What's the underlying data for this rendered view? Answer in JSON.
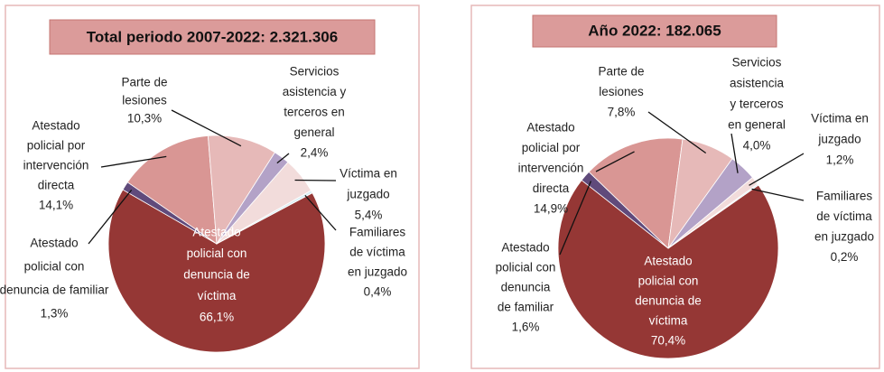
{
  "chart_data": [
    {
      "type": "pie",
      "title": "Total periodo 2007-2022: 2.321.306",
      "label_lines": [
        [
          "Atestado",
          "policial con",
          "denuncia de",
          "víctima"
        ],
        [
          "Atestado",
          "policial con",
          "denuncia de familiar"
        ],
        [
          "Atestado",
          "policial por",
          "intervención",
          "directa"
        ],
        [
          "Parte de",
          "lesiones"
        ],
        [
          "Servicios",
          "asistencia y",
          "terceros en",
          "general"
        ],
        [
          "Víctima en",
          "juzgado"
        ],
        [
          "Familiares",
          "de víctima",
          "en juzgado"
        ]
      ],
      "values": [
        66.1,
        1.3,
        14.1,
        10.3,
        2.4,
        5.4,
        0.4
      ],
      "value_labels": [
        "66,1%",
        "1,3%",
        "14,1%",
        "10,3%",
        "2,4%",
        "5,4%",
        "0,4%"
      ],
      "colors": [
        "#953735",
        "#604a7b",
        "#d99694",
        "#e6b9b8",
        "#b3a2c7",
        "#f2dcdb",
        "#dbeef4"
      ]
    },
    {
      "type": "pie",
      "title": "Año 2022: 182.065",
      "label_lines": [
        [
          "Atestado",
          "policial con",
          "denuncia de",
          "víctima"
        ],
        [
          "Atestado",
          "policial con",
          "denuncia",
          "de familiar"
        ],
        [
          "Atestado",
          "policial por",
          "intervención",
          "directa"
        ],
        [
          "Parte de",
          "lesiones"
        ],
        [
          "Servicios",
          "asistencia",
          "y terceros",
          "en general"
        ],
        [
          "Víctima en",
          "juzgado"
        ],
        [
          "Familiares",
          "de víctima",
          "en juzgado"
        ]
      ],
      "values": [
        70.4,
        1.6,
        14.9,
        7.8,
        4.0,
        1.2,
        0.2
      ],
      "value_labels": [
        "70,4%",
        "1,6%",
        "14,9%",
        "7,8%",
        "4,0%",
        "1,2%",
        "0,2%"
      ],
      "colors": [
        "#953735",
        "#604a7b",
        "#d99694",
        "#e6b9b8",
        "#b3a2c7",
        "#f2dcdb",
        "#dbeef4"
      ]
    }
  ]
}
